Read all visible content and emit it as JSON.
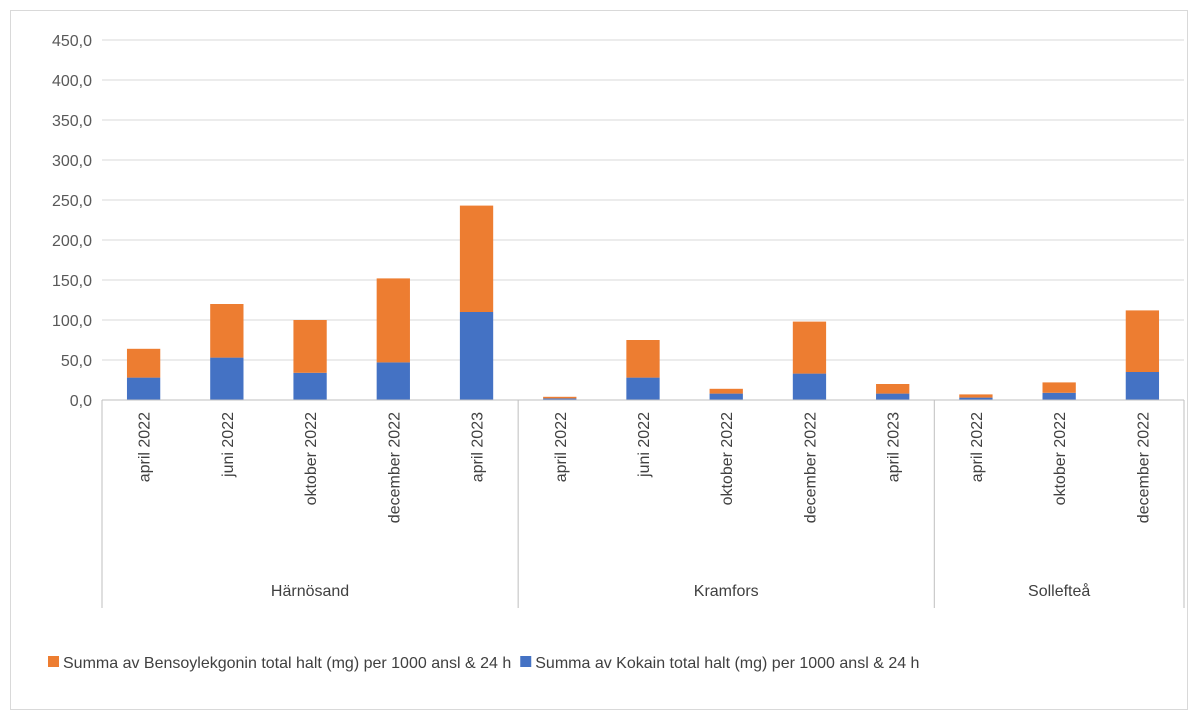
{
  "chart_data": {
    "type": "bar",
    "stacked": true,
    "ylim": [
      0,
      450
    ],
    "yticks": [
      "0,0",
      "50,0",
      "100,0",
      "150,0",
      "200,0",
      "250,0",
      "300,0",
      "350,0",
      "400,0",
      "450,0"
    ],
    "grid": true,
    "legend_position": "bottom",
    "groups": [
      {
        "name": "Härnösand",
        "categories": [
          "april 2022",
          "juni 2022",
          "oktober 2022",
          "december 2022",
          "april 2023"
        ]
      },
      {
        "name": "Kramfors",
        "categories": [
          "april 2022",
          "juni 2022",
          "oktober 2022",
          "december 2022",
          "april 2023"
        ]
      },
      {
        "name": "Sollefteå",
        "categories": [
          "april 2022",
          "oktober 2022",
          "december 2022"
        ]
      }
    ],
    "series": [
      {
        "name": "Summa av Kokain total halt (mg) per 1000 ansl & 24 h",
        "color": "#4472c4",
        "values": [
          28,
          53,
          34,
          47,
          110,
          2,
          28,
          8,
          33,
          8,
          3,
          9,
          35
        ]
      },
      {
        "name": "Summa av Bensoylekgonin total halt (mg) per 1000 ansl & 24 h",
        "color": "#ed7d31",
        "values": [
          36,
          67,
          66,
          105,
          133,
          2,
          47,
          6,
          65,
          12,
          4,
          13,
          77
        ]
      }
    ],
    "legend_order": [
      1,
      0
    ]
  }
}
